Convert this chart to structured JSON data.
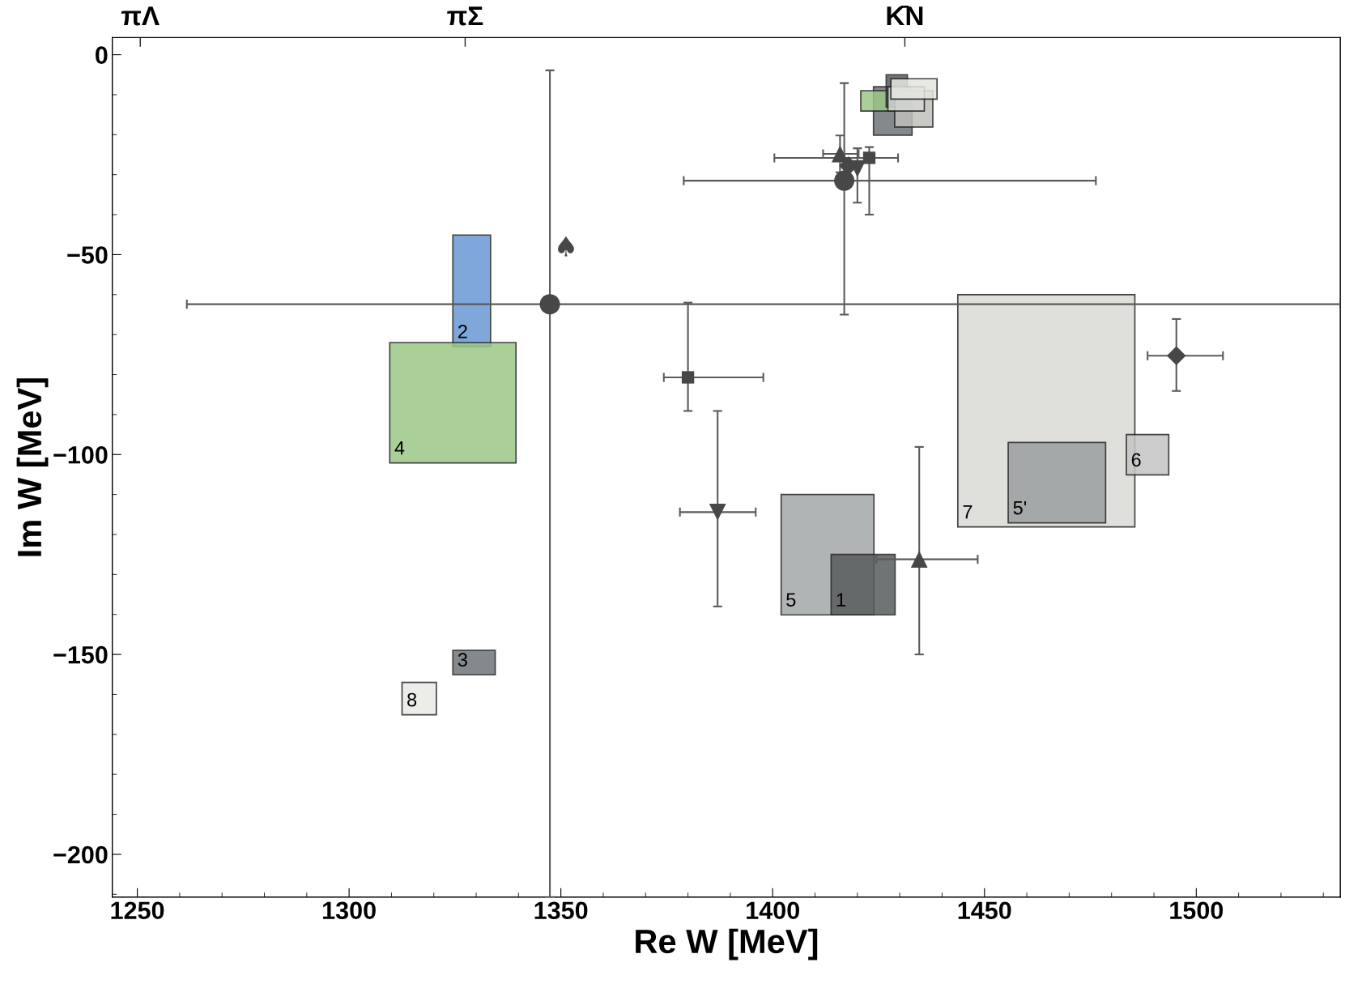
{
  "chart_data": {
    "type": "scatter",
    "xlabel": "Re W [MeV]",
    "ylabel": "Im W [MeV]",
    "xlim": [
      1244.1,
      1534.0
    ],
    "ylim": [
      -210.7,
      4.3
    ],
    "xticks": [
      1250,
      1300,
      1350,
      1400,
      1450,
      1500
    ],
    "yticks": [
      0,
      {
        "value": -50,
        "label": "−50"
      },
      {
        "value": -100,
        "label": "−100"
      },
      {
        "value": -150,
        "label": "−150"
      },
      {
        "value": -200,
        "label": "−200"
      }
    ],
    "ref_lines": [
      {
        "axis": "x",
        "value": 1250.7,
        "label": "πΛ"
      },
      {
        "axis": "x",
        "value": 1327.4,
        "label": "πΣ"
      },
      {
        "axis": "x",
        "value": 1431.2,
        "label": "K̄N"
      }
    ],
    "grid": false,
    "series": [
      {
        "type": "area",
        "name": "2",
        "color": "#6a98d4",
        "x": [
          1324.5,
          1324.5,
          1333.4,
          1333.4
        ],
        "values": [
          -73.0,
          -45.1,
          -45.1,
          -73.0
        ]
      },
      {
        "type": "area",
        "name": "4",
        "color": "#9dc788",
        "x": [
          1309.6,
          1309.6,
          1339.4,
          1339.4
        ],
        "values": [
          -102.1,
          -72.0,
          -72.0,
          -102.1
        ]
      },
      {
        "type": "area",
        "name": "3",
        "color": "#6e7579",
        "x": [
          1324.5,
          1324.5,
          1334.5,
          1334.5
        ],
        "values": [
          -155.1,
          -149.0,
          -149.0,
          -155.1
        ]
      },
      {
        "type": "area",
        "name": "8",
        "color": "#e9ebe6",
        "x": [
          1312.5,
          1312.5,
          1320.6,
          1320.6
        ],
        "values": [
          -165.1,
          -157.0,
          -157.0,
          -165.1
        ]
      },
      {
        "type": "area",
        "name": "5",
        "color": "#a4a7a8",
        "x": [
          1402.0,
          1402.0,
          1423.9,
          1423.9
        ],
        "values": [
          -140.1,
          -110.0,
          -110.0,
          -140.1
        ]
      },
      {
        "type": "area",
        "name": "1",
        "color": "#585c5e",
        "x": [
          1413.8,
          1413.8,
          1428.9,
          1428.9
        ],
        "values": [
          -140.1,
          -125.0,
          -125.0,
          -140.1
        ]
      },
      {
        "type": "area",
        "name": "7",
        "color": "#dadad6",
        "x": [
          1443.7,
          1443.7,
          1485.5,
          1485.5
        ],
        "values": [
          -118.1,
          -60.0,
          -60.0,
          -118.1
        ]
      },
      {
        "type": "area",
        "name": "5'",
        "color": "#9c9fa0",
        "x": [
          1455.6,
          1455.6,
          1478.6,
          1478.6
        ],
        "values": [
          -117.1,
          -97.0,
          -97.0,
          -117.1
        ]
      },
      {
        "type": "area",
        "name": "6",
        "color": "#c4c4c4",
        "x": [
          1483.5,
          1483.5,
          1493.5,
          1493.5
        ],
        "values": [
          -105.1,
          -95.0,
          -95.0,
          -105.1
        ]
      },
      {
        "type": "area",
        "color": "#6e7579",
        "x": [
          1423.8,
          1423.8,
          1432.9,
          1432.9
        ],
        "values": [
          -20.1,
          -8.0,
          -8.0,
          -20.1
        ]
      },
      {
        "type": "area",
        "color": "#9dc788",
        "x": [
          1420.8,
          1420.8,
          1428.9,
          1428.9
        ],
        "values": [
          -14.1,
          -9.0,
          -9.0,
          -14.1
        ]
      },
      {
        "type": "area",
        "color": "#585c5e",
        "x": [
          1426.8,
          1426.8,
          1431.8,
          1431.8
        ],
        "values": [
          -13.1,
          -5.0,
          -5.0,
          -13.1
        ]
      },
      {
        "type": "area",
        "color": "#c0c0bd",
        "x": [
          1428.8,
          1428.8,
          1437.8,
          1437.8
        ],
        "values": [
          -18.1,
          -9.0,
          -9.0,
          -18.1
        ]
      },
      {
        "type": "area",
        "color": "#d6d8d3",
        "x": [
          1427.2,
          1427.2,
          1435.8,
          1435.8
        ],
        "values": [
          -14.1,
          -8.0,
          -8.0,
          -14.1
        ]
      },
      {
        "type": "area",
        "color": "#e4e6e1",
        "x": [
          1427.9,
          1427.9,
          1438.8,
          1438.8
        ],
        "values": [
          -11.1,
          -6.0,
          -6.0,
          -11.1
        ]
      },
      {
        "marker": "circle",
        "color": "#474747",
        "x": [
          1347.4,
          1416.9
        ],
        "values": [
          -62.4,
          -31.5
        ],
        "xerrors": [
          [
            1261.7,
            1534.0
          ],
          [
            1379.0,
            1476.3
          ]
        ],
        "errors": [
          [
            -210.7,
            -3.9
          ],
          [
            -65.0,
            -7.1
          ]
        ]
      },
      {
        "color": "#474747",
        "x": [
          1351.2
        ],
        "values": [
          -47.9
        ]
      },
      {
        "marker": "square",
        "color": "#474747",
        "x": [
          1380.0,
          1422.8
        ],
        "values": [
          -80.7,
          -25.8
        ],
        "xerrors": [
          [
            1374.3,
            1397.8
          ],
          [
            1400.4,
            1429.6
          ]
        ],
        "errors": [
          [
            -89.1,
            -62.0
          ],
          [
            -40.0,
            -23.1
          ]
        ]
      },
      {
        "marker": "triangle_down",
        "color": "#474747",
        "x": [
          1387.0,
          1420.0
        ],
        "values": [
          -114.4,
          -28.5
        ],
        "xerrors": [
          [
            1378.1,
            1396.0
          ],
          null
        ],
        "errors": [
          [
            -138.0,
            -89.1
          ],
          [
            -37.0,
            -23.4
          ]
        ]
      },
      {
        "marker": "triangle",
        "color": "#474747",
        "x": [
          1434.6,
          1415.9
        ],
        "values": [
          -126.2,
          -24.8
        ],
        "xerrors": [
          [
            1424.5,
            1448.4
          ],
          [
            1411.9,
            1420.3
          ]
        ],
        "errors": [
          [
            -150.0,
            -98.1
          ],
          [
            -29.4,
            -20.2
          ]
        ]
      },
      {
        "marker": "diamond",
        "color": "#474747",
        "x": [
          1495.3,
          1417.9
        ],
        "values": [
          -75.3,
          -27.8
        ],
        "xerrors": [
          [
            1488.5,
            1506.3
          ],
          null
        ],
        "errors": [
          [
            -84.1,
            -66.1
          ],
          null
        ]
      }
    ]
  }
}
